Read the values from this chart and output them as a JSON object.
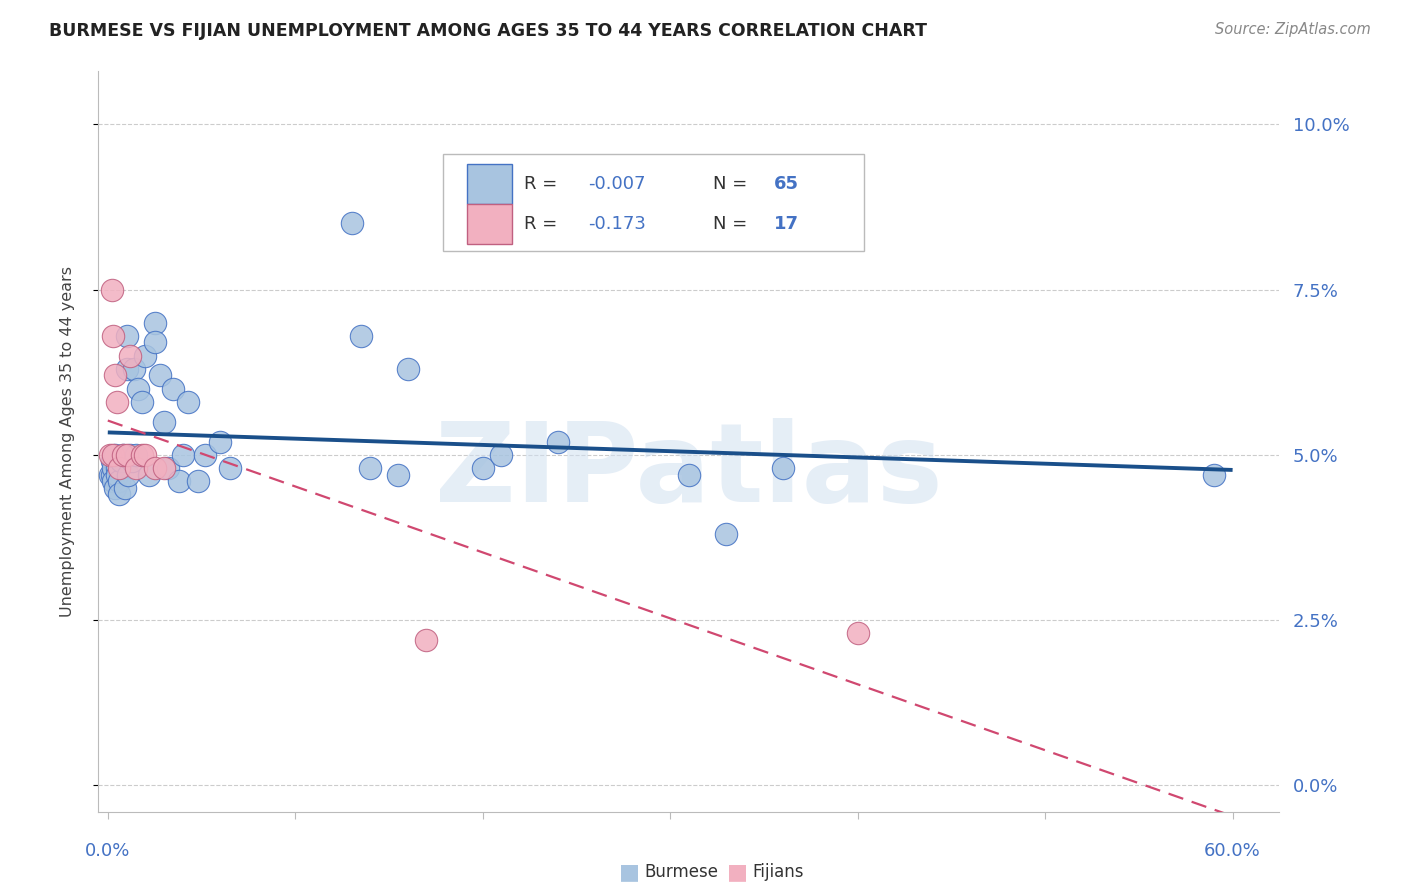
{
  "title": "BURMESE VS FIJIAN UNEMPLOYMENT AMONG AGES 35 TO 44 YEARS CORRELATION CHART",
  "source": "Source: ZipAtlas.com",
  "ylabel": "Unemployment Among Ages 35 to 44 years",
  "xlim": [
    -0.005,
    0.625
  ],
  "ylim": [
    -0.004,
    0.108
  ],
  "ytick_vals": [
    0.0,
    0.025,
    0.05,
    0.075,
    0.1
  ],
  "ytick_labels": [
    "0.0%",
    "2.5%",
    "5.0%",
    "7.5%",
    "10.0%"
  ],
  "burmese_fill": "#a8c4e0",
  "burmese_edge": "#4472c4",
  "fijian_fill": "#f2b0c0",
  "fijian_edge": "#c06080",
  "burmese_line_color": "#1a4f8a",
  "fijian_line_color": "#d04870",
  "watermark_color": "#d0e0f0",
  "title_color": "#222222",
  "source_color": "#888888",
  "tick_color": "#4472c4",
  "grid_color": "#cccccc",
  "burmese_x": [
    0.001,
    0.002,
    0.002,
    0.003,
    0.003,
    0.004,
    0.004,
    0.005,
    0.005,
    0.006,
    0.006,
    0.007,
    0.008,
    0.009,
    0.01,
    0.01,
    0.011,
    0.012,
    0.013,
    0.014,
    0.015,
    0.016,
    0.018,
    0.02,
    0.022,
    0.025,
    0.025,
    0.028,
    0.03,
    0.032,
    0.035,
    0.038,
    0.04,
    0.043,
    0.048,
    0.052,
    0.06,
    0.065,
    0.13,
    0.135,
    0.14,
    0.155,
    0.16,
    0.2,
    0.21,
    0.24,
    0.31,
    0.33,
    0.36,
    0.59
  ],
  "burmese_y": [
    0.047,
    0.049,
    0.047,
    0.048,
    0.046,
    0.05,
    0.045,
    0.048,
    0.047,
    0.046,
    0.044,
    0.049,
    0.05,
    0.045,
    0.068,
    0.063,
    0.047,
    0.05,
    0.049,
    0.063,
    0.05,
    0.06,
    0.058,
    0.065,
    0.047,
    0.07,
    0.067,
    0.062,
    0.055,
    0.048,
    0.06,
    0.046,
    0.05,
    0.058,
    0.046,
    0.05,
    0.052,
    0.048,
    0.085,
    0.068,
    0.048,
    0.047,
    0.063,
    0.048,
    0.05,
    0.052,
    0.047,
    0.038,
    0.048,
    0.047
  ],
  "fijian_x": [
    0.001,
    0.002,
    0.003,
    0.003,
    0.004,
    0.005,
    0.006,
    0.008,
    0.01,
    0.012,
    0.015,
    0.018,
    0.02,
    0.025,
    0.03,
    0.17,
    0.4
  ],
  "fijian_y": [
    0.05,
    0.075,
    0.068,
    0.05,
    0.062,
    0.058,
    0.048,
    0.05,
    0.05,
    0.065,
    0.048,
    0.05,
    0.05,
    0.048,
    0.048,
    0.022,
    0.023
  ]
}
